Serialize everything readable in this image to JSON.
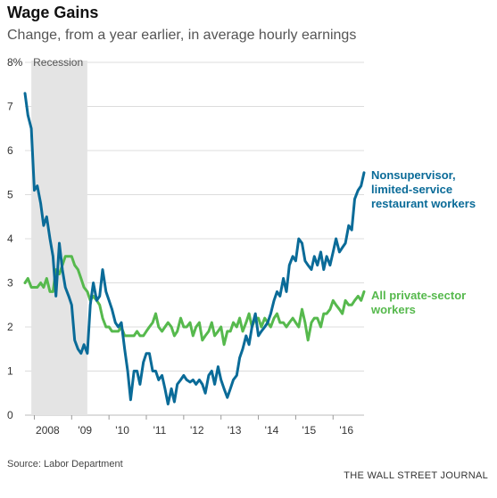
{
  "header": {
    "title": "Wage Gains",
    "subtitle": "Change, from a year earlier, in average hourly earnings"
  },
  "footer": {
    "source": "Source: Labor Department",
    "credit": "THE WALL STREET JOURNAL"
  },
  "chart_data": {
    "type": "line",
    "title": "Wage Gains",
    "subtitle": "Change, from a year earlier, in average hourly earnings",
    "ylim": [
      0,
      8
    ],
    "xlim": [
      2007.75,
      2016.83
    ],
    "y_ticks": [
      0,
      1,
      2,
      3,
      4,
      5,
      6,
      7,
      8
    ],
    "y_tick_labels": [
      "0",
      "1",
      "2",
      "3",
      "4",
      "5",
      "6",
      "7",
      "8%"
    ],
    "x_ticks": [
      2008,
      2009,
      2010,
      2011,
      2012,
      2013,
      2014,
      2015,
      2016
    ],
    "x_tick_labels": [
      "2008",
      "'09",
      "'10",
      "'11",
      "'12",
      "'13",
      "'14",
      "'15",
      "'16"
    ],
    "grid": true,
    "annotations": [
      {
        "type": "shaded_region",
        "label": "Recession",
        "x_start": 2007.92,
        "x_end": 2009.42,
        "color": "#e4e4e4"
      }
    ],
    "series": [
      {
        "name": "Nonsupervisor, limited-service restaurant workers",
        "label_lines": [
          "Nonsupervisor,",
          "limited-service",
          "restaurant workers"
        ],
        "color": "#0a6b98",
        "x": [
          2007.75,
          2007.83,
          2007.92,
          2008.0,
          2008.08,
          2008.17,
          2008.25,
          2008.33,
          2008.42,
          2008.5,
          2008.58,
          2008.67,
          2008.75,
          2008.83,
          2008.92,
          2009.0,
          2009.08,
          2009.17,
          2009.25,
          2009.33,
          2009.42,
          2009.5,
          2009.58,
          2009.67,
          2009.75,
          2009.83,
          2009.92,
          2010.0,
          2010.08,
          2010.17,
          2010.25,
          2010.33,
          2010.42,
          2010.5,
          2010.58,
          2010.67,
          2010.75,
          2010.83,
          2010.92,
          2011.0,
          2011.08,
          2011.17,
          2011.25,
          2011.33,
          2011.42,
          2011.5,
          2011.58,
          2011.67,
          2011.75,
          2011.83,
          2011.92,
          2012.0,
          2012.08,
          2012.17,
          2012.25,
          2012.33,
          2012.42,
          2012.5,
          2012.58,
          2012.67,
          2012.75,
          2012.83,
          2012.92,
          2013.0,
          2013.08,
          2013.17,
          2013.25,
          2013.33,
          2013.42,
          2013.5,
          2013.58,
          2013.67,
          2013.75,
          2013.83,
          2013.92,
          2014.0,
          2014.08,
          2014.17,
          2014.25,
          2014.33,
          2014.42,
          2014.5,
          2014.58,
          2014.67,
          2014.75,
          2014.83,
          2014.92,
          2015.0,
          2015.08,
          2015.17,
          2015.25,
          2015.33,
          2015.42,
          2015.5,
          2015.58,
          2015.67,
          2015.75,
          2015.83,
          2015.92,
          2016.0,
          2016.08,
          2016.17,
          2016.25,
          2016.33,
          2016.42,
          2016.5,
          2016.58,
          2016.67,
          2016.75,
          2016.83
        ],
        "values": [
          7.3,
          6.8,
          6.5,
          5.1,
          5.2,
          4.8,
          4.3,
          4.5,
          4.0,
          3.6,
          2.7,
          3.9,
          3.3,
          2.9,
          2.7,
          2.5,
          1.7,
          1.5,
          1.4,
          1.6,
          1.4,
          2.5,
          3.0,
          2.6,
          2.7,
          3.3,
          2.8,
          2.6,
          2.4,
          2.1,
          2.0,
          2.1,
          1.5,
          1.0,
          0.35,
          1.0,
          1.0,
          0.7,
          1.2,
          1.4,
          1.4,
          1.0,
          1.0,
          0.8,
          0.9,
          0.6,
          0.25,
          0.6,
          0.3,
          0.7,
          0.8,
          0.9,
          0.8,
          0.75,
          0.8,
          0.7,
          0.8,
          0.7,
          0.5,
          0.9,
          1.0,
          0.7,
          1.1,
          0.8,
          0.6,
          0.4,
          0.6,
          0.8,
          0.9,
          1.3,
          1.5,
          1.8,
          1.6,
          2.0,
          2.3,
          1.8,
          1.9,
          2.0,
          2.1,
          2.3,
          2.6,
          2.8,
          2.7,
          3.1,
          2.8,
          3.4,
          3.6,
          3.5,
          4.0,
          3.9,
          3.5,
          3.4,
          3.3,
          3.6,
          3.4,
          3.7,
          3.3,
          3.6,
          3.4,
          3.7,
          4.0,
          3.7,
          3.8,
          3.9,
          4.3,
          4.2,
          4.9,
          5.1,
          5.2,
          5.5
        ]
      },
      {
        "name": "All private-sector workers",
        "label_lines": [
          "All private-sector",
          "workers"
        ],
        "color": "#56b94d",
        "x": [
          2007.75,
          2007.83,
          2007.92,
          2008.0,
          2008.08,
          2008.17,
          2008.25,
          2008.33,
          2008.42,
          2008.5,
          2008.58,
          2008.67,
          2008.75,
          2008.83,
          2008.92,
          2009.0,
          2009.08,
          2009.17,
          2009.25,
          2009.33,
          2009.42,
          2009.5,
          2009.58,
          2009.67,
          2009.75,
          2009.83,
          2009.92,
          2010.0,
          2010.08,
          2010.17,
          2010.25,
          2010.33,
          2010.42,
          2010.5,
          2010.58,
          2010.67,
          2010.75,
          2010.83,
          2010.92,
          2011.0,
          2011.08,
          2011.17,
          2011.25,
          2011.33,
          2011.42,
          2011.5,
          2011.58,
          2011.67,
          2011.75,
          2011.83,
          2011.92,
          2012.0,
          2012.08,
          2012.17,
          2012.25,
          2012.33,
          2012.42,
          2012.5,
          2012.58,
          2012.67,
          2012.75,
          2012.83,
          2012.92,
          2013.0,
          2013.08,
          2013.17,
          2013.25,
          2013.33,
          2013.42,
          2013.5,
          2013.58,
          2013.67,
          2013.75,
          2013.83,
          2013.92,
          2014.0,
          2014.08,
          2014.17,
          2014.25,
          2014.33,
          2014.42,
          2014.5,
          2014.58,
          2014.67,
          2014.75,
          2014.83,
          2014.92,
          2015.0,
          2015.08,
          2015.17,
          2015.25,
          2015.33,
          2015.42,
          2015.5,
          2015.58,
          2015.67,
          2015.75,
          2015.83,
          2015.92,
          2016.0,
          2016.08,
          2016.17,
          2016.25,
          2016.33,
          2016.42,
          2016.5,
          2016.58,
          2016.67,
          2016.75,
          2016.83
        ],
        "values": [
          3.0,
          3.1,
          2.9,
          2.9,
          2.9,
          3.0,
          2.9,
          3.1,
          2.8,
          2.8,
          3.3,
          3.2,
          3.4,
          3.6,
          3.6,
          3.6,
          3.4,
          3.3,
          3.1,
          2.9,
          2.8,
          2.6,
          2.7,
          2.6,
          2.5,
          2.2,
          2.0,
          2.0,
          1.9,
          1.9,
          1.9,
          2.0,
          1.8,
          1.8,
          1.8,
          1.8,
          1.9,
          1.8,
          1.8,
          1.9,
          2.0,
          2.1,
          2.3,
          2.0,
          1.9,
          2.0,
          2.1,
          2.0,
          1.8,
          1.9,
          2.2,
          2.0,
          2.0,
          2.1,
          1.8,
          2.0,
          2.1,
          1.7,
          1.8,
          1.9,
          2.1,
          1.8,
          1.9,
          2.0,
          1.6,
          1.9,
          1.9,
          2.1,
          2.0,
          2.2,
          1.9,
          2.1,
          2.3,
          2.0,
          2.2,
          2.2,
          2.0,
          2.2,
          2.1,
          2.0,
          2.2,
          2.3,
          2.1,
          2.1,
          2.0,
          2.1,
          2.2,
          2.1,
          2.0,
          2.4,
          2.1,
          1.7,
          2.1,
          2.2,
          2.2,
          2.0,
          2.3,
          2.3,
          2.4,
          2.6,
          2.5,
          2.4,
          2.3,
          2.6,
          2.5,
          2.5,
          2.6,
          2.7,
          2.6,
          2.8
        ]
      }
    ]
  }
}
